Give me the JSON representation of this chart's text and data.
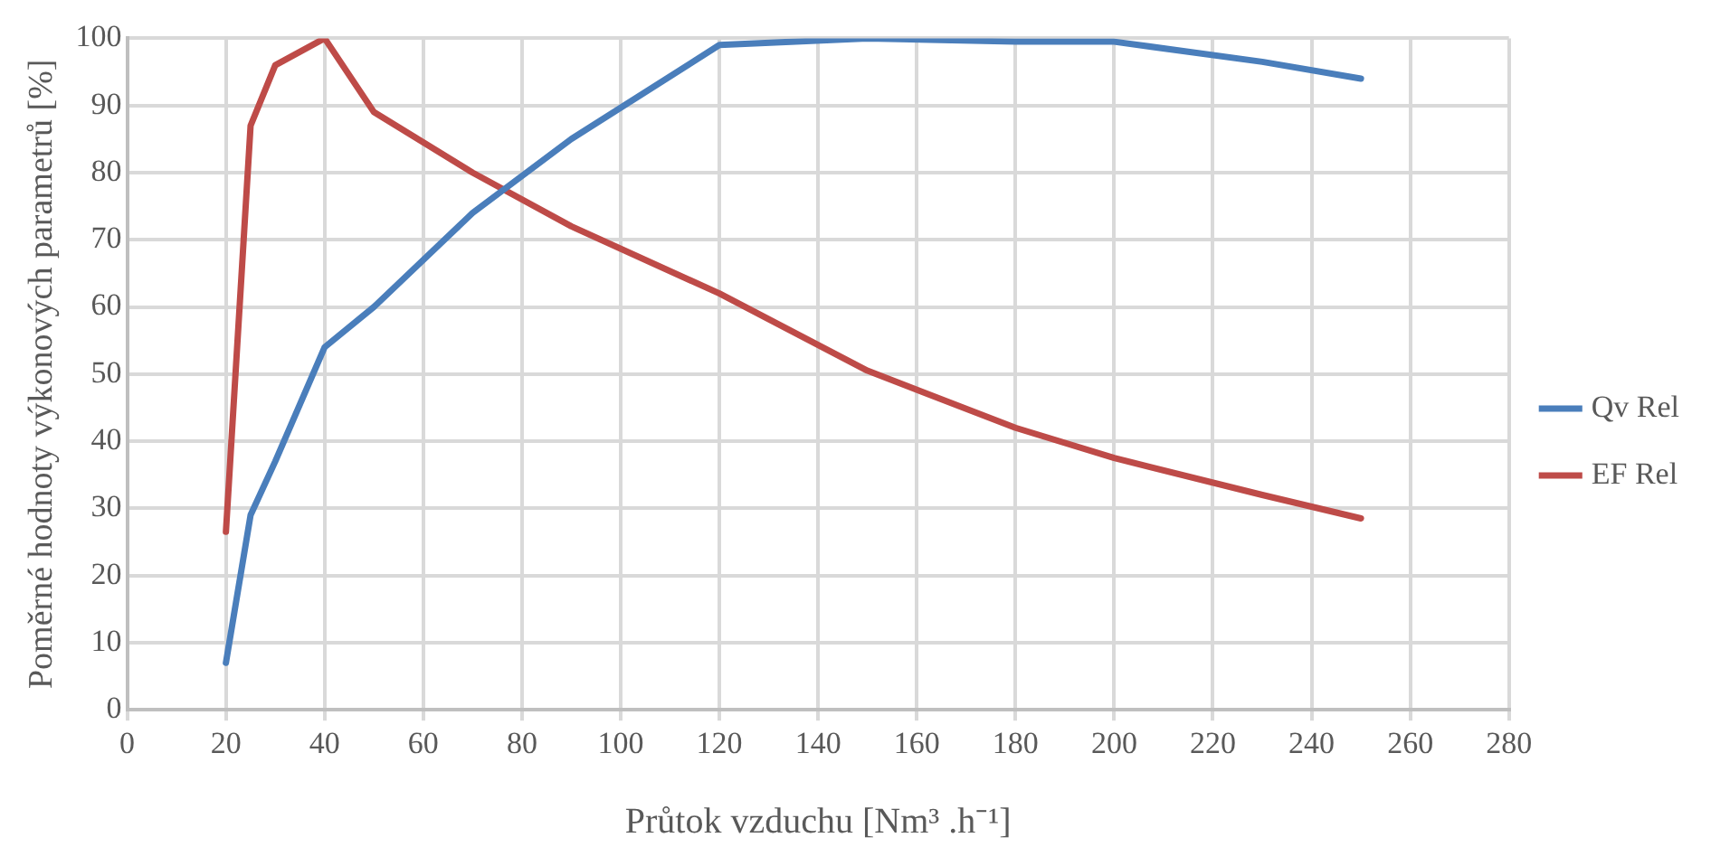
{
  "chart_data": {
    "type": "line",
    "xlabel": "Průtok vzduchu [Nm³ .h⁻¹]",
    "ylabel": "Poměrné hodnoty výkonových parametrů [%]",
    "x": [
      20,
      25,
      30,
      40,
      50,
      70,
      90,
      120,
      150,
      180,
      200,
      230,
      250
    ],
    "series": [
      {
        "name": "Qv Rel",
        "color": "#4a7ebb",
        "values": [
          7,
          29,
          37,
          54,
          60,
          74,
          85,
          99,
          100,
          99.5,
          99.5,
          96.5,
          94
        ]
      },
      {
        "name": "EF Rel",
        "color": "#be4b48",
        "values": [
          26.5,
          87,
          96,
          100,
          89,
          80,
          72,
          62,
          50.5,
          42,
          37.5,
          32,
          28.5
        ]
      }
    ],
    "xlim": [
      0,
      280
    ],
    "xticks": [
      0,
      20,
      40,
      60,
      80,
      100,
      120,
      140,
      160,
      180,
      200,
      220,
      240,
      260,
      280
    ],
    "ylim": [
      0,
      100
    ],
    "yticks": [
      0,
      10,
      20,
      30,
      40,
      50,
      60,
      70,
      80,
      90,
      100
    ],
    "grid": true,
    "legend": "right",
    "marker": "none",
    "line_style": "solid"
  }
}
